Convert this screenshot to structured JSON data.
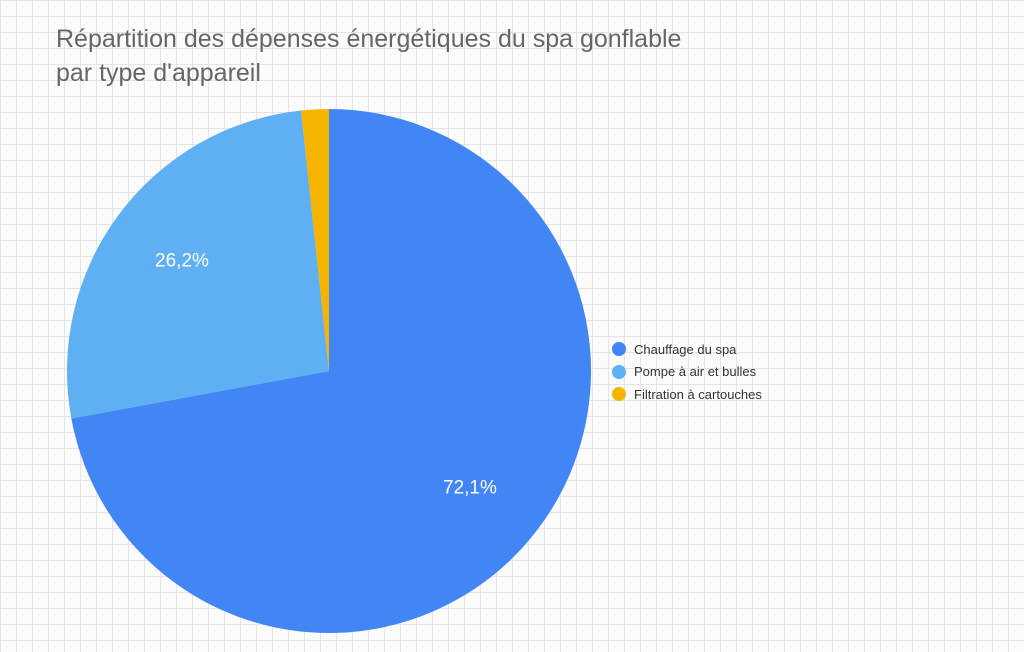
{
  "chart_data": {
    "type": "pie",
    "title_lines": [
      "Répartition des dépenses énergétiques du spa gonflable",
      "par type d'appareil"
    ],
    "categories": [
      "Chauffage du spa",
      "Pompe à air et bulles",
      "Filtration à cartouches"
    ],
    "values": [
      72.1,
      26.2,
      1.7
    ],
    "data_labels": [
      "72,1%",
      "26,2%",
      ""
    ],
    "colors": [
      "#4285f4",
      "#5eb0f3",
      "#f4b400"
    ],
    "legend_position": "right"
  }
}
